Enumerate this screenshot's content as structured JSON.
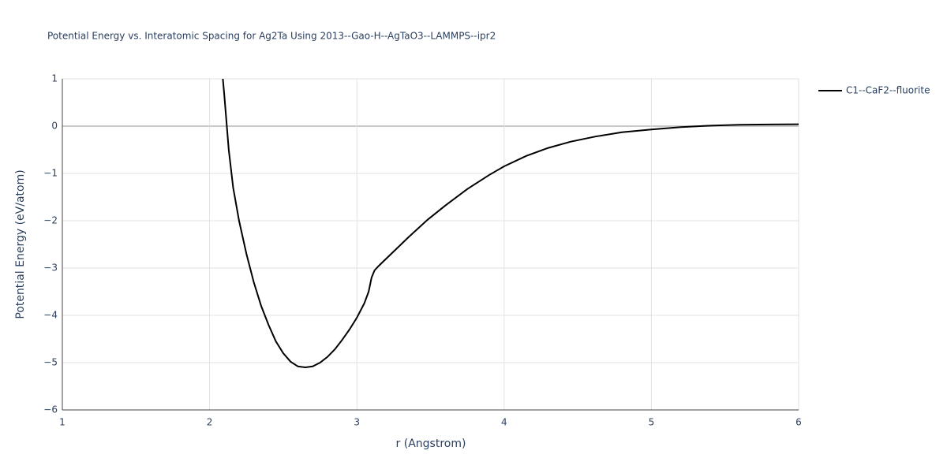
{
  "chart_data": {
    "type": "line",
    "title": "Potential Energy vs. Interatomic Spacing for Ag2Ta Using 2013--Gao-H--AgTaO3--LAMMPS--ipr2",
    "x_label": "r (Angstrom)",
    "y_label": "Potential Energy (eV/atom)",
    "x": [
      2.09,
      2.1,
      2.13,
      2.16,
      2.2,
      2.25,
      2.3,
      2.35,
      2.4,
      2.45,
      2.5,
      2.55,
      2.6,
      2.65,
      2.7,
      2.75,
      2.8,
      2.85,
      2.9,
      2.95,
      3.0,
      3.05,
      3.08,
      3.1,
      3.12,
      3.15,
      3.25,
      3.35,
      3.48,
      3.6,
      3.75,
      3.9,
      4.0,
      4.15,
      4.3,
      4.45,
      4.62,
      4.8,
      5.0,
      5.2,
      5.4,
      5.6,
      5.8,
      6.0
    ],
    "series": [
      {
        "name": "C1--CaF2--fluorite",
        "color": "#000000",
        "values": [
          1.0,
          0.65,
          -0.5,
          -1.3,
          -2.0,
          -2.7,
          -3.3,
          -3.8,
          -4.2,
          -4.55,
          -4.8,
          -4.98,
          -5.08,
          -5.1,
          -5.08,
          -5.0,
          -4.88,
          -4.72,
          -4.52,
          -4.3,
          -4.05,
          -3.75,
          -3.5,
          -3.2,
          -3.05,
          -2.95,
          -2.65,
          -2.35,
          -1.98,
          -1.68,
          -1.33,
          -1.03,
          -0.85,
          -0.63,
          -0.46,
          -0.33,
          -0.22,
          -0.13,
          -0.07,
          -0.02,
          0.01,
          0.03,
          0.035,
          0.04
        ]
      }
    ],
    "xlim": [
      1,
      6
    ],
    "xticks": [
      1,
      2,
      3,
      4,
      5,
      6
    ],
    "ylim": [
      -6,
      1
    ],
    "yticks": [
      {
        "value": -6,
        "label": "−6"
      },
      {
        "value": -5,
        "label": "−5"
      },
      {
        "value": -4,
        "label": "−4"
      },
      {
        "value": -3,
        "label": "−3"
      },
      {
        "value": -2,
        "label": "−2"
      },
      {
        "value": -1,
        "label": "−1"
      },
      0,
      1
    ],
    "grid": true,
    "legend": "right"
  }
}
